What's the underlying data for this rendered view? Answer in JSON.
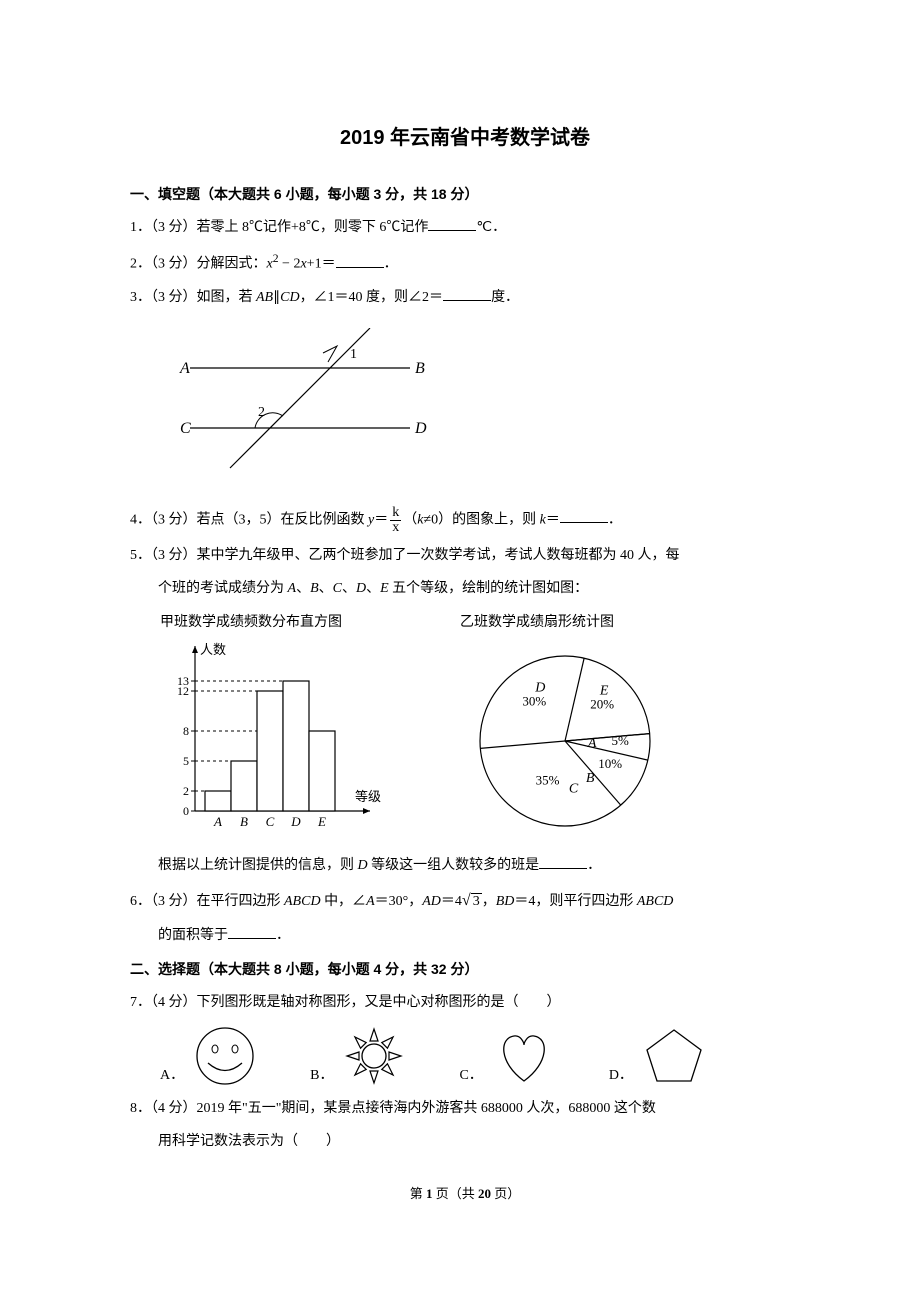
{
  "title": "2019 年云南省中考数学试卷",
  "section1": {
    "header": "一、填空题（本大题共 6 小题，每小题 3 分，共 18 分）",
    "q1": {
      "prefix": "1．（3 分）若零上 8℃记作+8℃，则零下 6℃记作",
      "suffix": "℃．"
    },
    "q2": {
      "prefix": "2．（3 分）分解因式：",
      "expr_before": "x",
      "expr_mid": " − 2",
      "expr_after": "+1＝",
      "suffix": "．"
    },
    "q3": {
      "prefix": "3．（3 分）如图，若 ",
      "ab": "AB",
      "parallel": "∥",
      "cd": "CD",
      "mid": "，∠1＝40 度，则∠2＝",
      "suffix": "度．"
    },
    "parallel_diagram": {
      "labels": {
        "A": "A",
        "B": "B",
        "C": "C",
        "D": "D",
        "angle1": "1",
        "angle2": "2"
      },
      "stroke": "#000000",
      "stroke_width": 1.2
    },
    "q4": {
      "prefix": "4．（3 分）若点（3，5）在反比例函数 ",
      "y_eq": "y",
      "eq": "＝",
      "frac_num": "k",
      "frac_den": "x",
      "paren_l": "（",
      "k": "k",
      "neq": "≠0）的图象上，则 ",
      "k2": "k",
      "eq2": "＝",
      "suffix": "．"
    },
    "q5": {
      "line1": "5．（3 分）某中学九年级甲、乙两个班参加了一次数学考试，考试人数每班都为 40 人，每",
      "line2": "个班的考试成绩分为 ",
      "grades_sep": "、",
      "g_a": "A",
      "g_b": "B",
      "g_c": "C",
      "g_d": "D",
      "g_e": "E",
      "line2_end": " 五个等级，绘制的统计图如图：",
      "line3_prefix": "根据以上统计图提供的信息，则 ",
      "line3_d": "D",
      "line3_suffix": " 等级这一组人数较多的班是",
      "line3_end": "．"
    },
    "histogram": {
      "title": "甲班数学成绩频数分布直方图",
      "y_label": "人数",
      "x_label": "等级",
      "categories": [
        "A",
        "B",
        "C",
        "D",
        "E"
      ],
      "values": [
        2,
        5,
        12,
        13,
        8
      ],
      "y_ticks": [
        0,
        2,
        5,
        8,
        12,
        13
      ],
      "y_max": 14,
      "stroke": "#000000",
      "bg": "#ffffff",
      "bar_fill": "#ffffff"
    },
    "pie": {
      "title": "乙班数学成绩扇形统计图",
      "slices": [
        {
          "label": "A",
          "pct": "5%",
          "value": 5
        },
        {
          "label": "B",
          "pct": "10%",
          "value": 10
        },
        {
          "label": "C",
          "pct": "35%",
          "value": 35
        },
        {
          "label": "D",
          "pct": "30%",
          "value": 30
        },
        {
          "label": "E",
          "pct": "20%",
          "value": 20
        }
      ],
      "stroke": "#000000",
      "fill": "#ffffff"
    },
    "q6": {
      "prefix": "6．（3 分）在平行四边形 ",
      "abcd": "ABCD",
      "mid1": " 中，∠",
      "A": "A",
      "eq30": "＝30°，",
      "AD": "AD",
      "eq_ad": "＝4",
      "sqrt3": "3",
      "comma": "，",
      "BD": "BD",
      "eq_bd": "＝4，则平行四边形 ",
      "abcd2": "ABCD",
      "line2_prefix": "的面积等于",
      "line2_suffix": "．"
    }
  },
  "section2": {
    "header": "二、选择题（本大题共 8 小题，每小题 4 分，共 32 分）",
    "q7": {
      "text": "7．（4 分）下列图形既是轴对称图形，又是中心对称图形的是（　　）",
      "opt_a": "A．",
      "opt_b": "B．",
      "opt_c": "C．",
      "opt_d": "D．",
      "shapes": {
        "stroke": "#000000",
        "fill": "none"
      }
    },
    "q8": {
      "line1": "8．（4 分）2019 年\"五一\"期间，某景点接待海内外游客共 688000 人次，688000 这个数",
      "line2": "用科学记数法表示为（　　）"
    }
  },
  "footer": {
    "prefix": "第 ",
    "page": "1",
    "mid": " 页（共 ",
    "total": "20",
    "suffix": " 页）"
  }
}
